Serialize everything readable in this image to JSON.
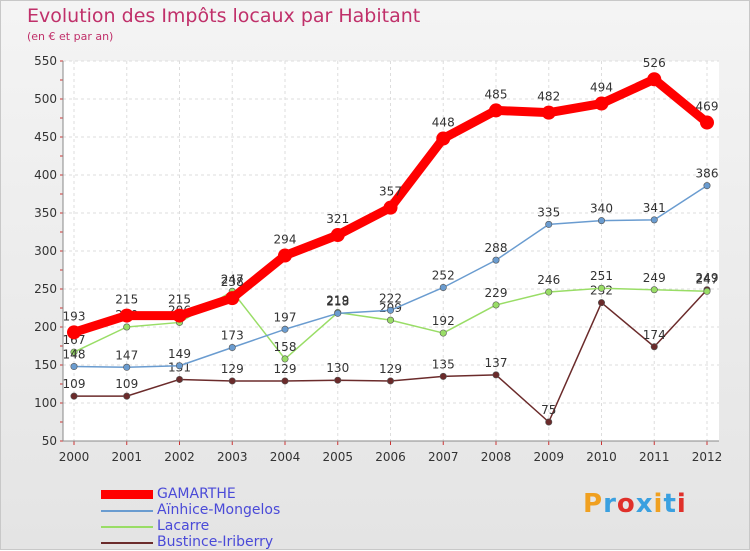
{
  "header": {
    "title": "Evolution des Impôts locaux par Habitant",
    "subtitle": "(en € et par an)"
  },
  "logo": {
    "letters": [
      "P",
      "r",
      "o",
      "x",
      "i",
      "t",
      "i"
    ],
    "colors": [
      "#f0a020",
      "#3aa0e0",
      "#e0302a",
      "#3aa0e0",
      "#f0a020",
      "#3aa0e0",
      "#e0302a"
    ]
  },
  "chart_data": {
    "type": "line",
    "x": [
      "2000",
      "2001",
      "2002",
      "2003",
      "2004",
      "2005",
      "2006",
      "2007",
      "2008",
      "2009",
      "2010",
      "2011",
      "2012"
    ],
    "ylim": [
      50,
      550
    ],
    "yticks": [
      50,
      100,
      150,
      200,
      250,
      300,
      350,
      400,
      450,
      500,
      550
    ],
    "grid": true,
    "legend": "bottom-left",
    "series": [
      {
        "name": "GAMARTHE",
        "color": "#ff0000",
        "values": [
          193,
          215,
          215,
          238,
          294,
          321,
          357,
          448,
          485,
          482,
          494,
          526,
          469
        ]
      },
      {
        "name": "Aïnhice-Mongelos",
        "color": "#6a9cd0",
        "values": [
          148,
          147,
          149,
          173,
          197,
          218,
          222,
          252,
          288,
          335,
          340,
          341,
          386
        ]
      },
      {
        "name": "Lacarre",
        "color": "#99dd66",
        "values": [
          167,
          200,
          206,
          247,
          158,
          219,
          209,
          192,
          229,
          246,
          251,
          249,
          247
        ]
      },
      {
        "name": "Bustince-Iriberry",
        "color": "#6b2b2b",
        "values": [
          109,
          109,
          131,
          129,
          129,
          130,
          129,
          135,
          137,
          75,
          232,
          174,
          249
        ]
      }
    ]
  }
}
